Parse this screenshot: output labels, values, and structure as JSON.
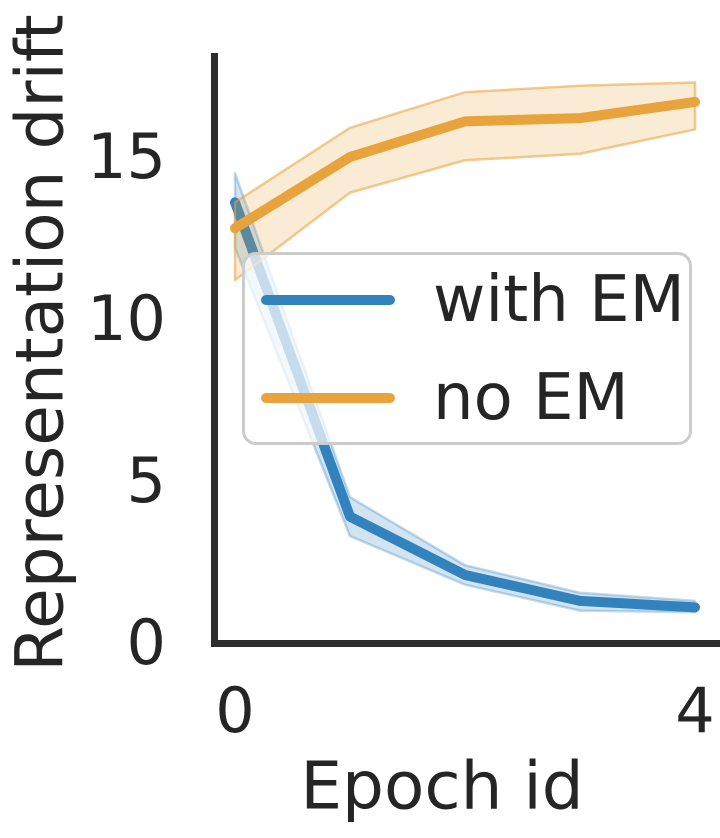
{
  "figure": {
    "background": "#ffffff"
  },
  "chart_data": {
    "type": "line",
    "title": "",
    "xlabel": "Epoch id",
    "ylabel": "Representation drift",
    "x": [
      0,
      1,
      2,
      3,
      4
    ],
    "xticks": [
      "0",
      "4"
    ],
    "xtick_values": [
      0,
      4
    ],
    "yticks": [
      "0",
      "5",
      "10",
      "15"
    ],
    "ytick_values": [
      0,
      5,
      10,
      15
    ],
    "xlim": [
      -0.18,
      4.22
    ],
    "ylim": [
      0,
      18.2
    ],
    "grid": false,
    "legend_position": "center-left-inside",
    "series": [
      {
        "name": "with EM",
        "color": "#3282bd",
        "values": [
          13.6,
          3.9,
          2.1,
          1.3,
          1.1
        ],
        "band_low": [
          12.2,
          3.3,
          1.8,
          1.0,
          0.95
        ],
        "band_high": [
          14.5,
          4.5,
          2.4,
          1.55,
          1.3
        ]
      },
      {
        "name": "no EM",
        "color": "#e8a33c",
        "values": [
          12.8,
          15.0,
          16.1,
          16.2,
          16.7
        ],
        "band_low": [
          11.2,
          13.9,
          14.9,
          15.1,
          15.85
        ],
        "band_high": [
          13.6,
          15.9,
          17.0,
          17.2,
          17.3
        ]
      }
    ]
  },
  "colors": {
    "axis_spine": "#2d2d2d",
    "text": "#252525",
    "legend_border": "#cccccc"
  }
}
